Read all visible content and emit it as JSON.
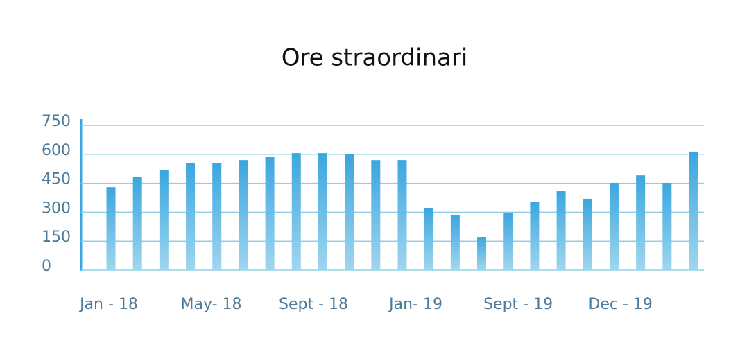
{
  "chart_data": {
    "type": "bar",
    "title": "Ore straordinari",
    "categories": [
      "Jan - 18",
      null,
      null,
      null,
      "May- 18",
      null,
      null,
      null,
      "Sept - 18",
      null,
      null,
      null,
      "Jan- 19",
      null,
      null,
      null,
      "Sept - 19",
      null,
      null,
      null,
      "Dec - 19",
      null,
      null
    ],
    "values": [
      430,
      484,
      517,
      553,
      553,
      570,
      588,
      606,
      606,
      599,
      570,
      570,
      323,
      287,
      172,
      298,
      355,
      409,
      370,
      452,
      491,
      452,
      614
    ],
    "color": "#3aa6df",
    "ylim": [
      0,
      750
    ],
    "yticks": [
      0,
      150,
      300,
      450,
      600,
      750
    ],
    "grid": true
  }
}
